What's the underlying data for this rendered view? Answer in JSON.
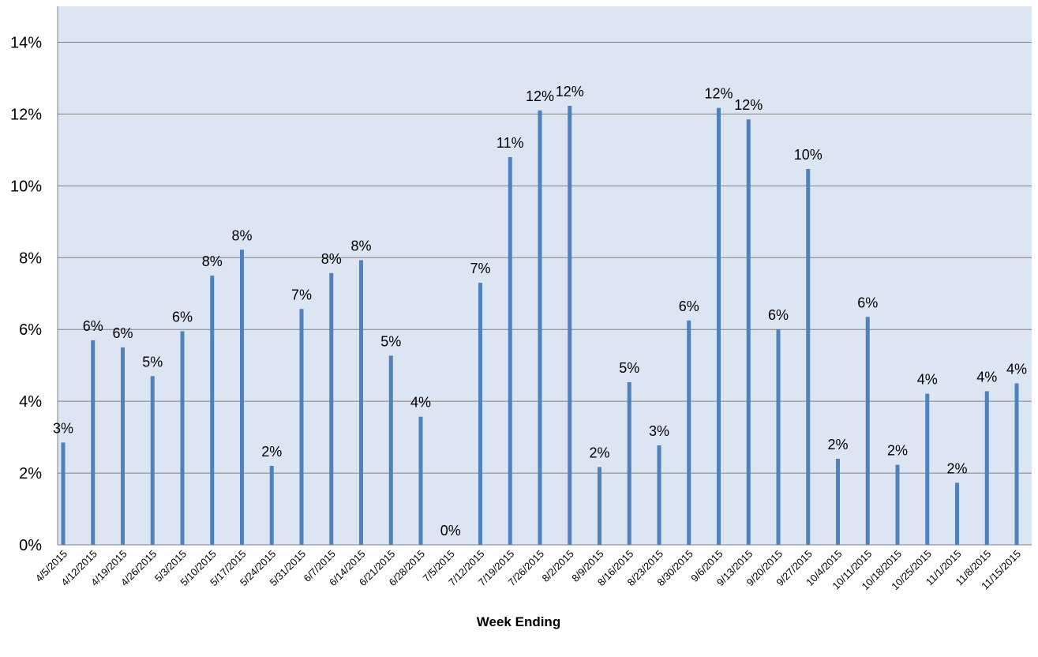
{
  "chart_data": {
    "type": "bar",
    "title": "",
    "xlabel": "Week Ending",
    "ylabel": "",
    "ylim": [
      0,
      0.15
    ],
    "yticks": [
      "0%",
      "2%",
      "4%",
      "6%",
      "8%",
      "10%",
      "12%",
      "14%"
    ],
    "grid": true,
    "legend": "none",
    "colors": {
      "plot_background": "#dce6f2",
      "bar": "#4f81bd",
      "gridline": "#808080",
      "axis": "#808080",
      "text": "#000000"
    },
    "categories": [
      "4/5/2015",
      "4/12/2015",
      "4/19/2015",
      "4/26/2015",
      "5/3/2015",
      "5/10/2015",
      "5/17/2015",
      "5/24/2015",
      "5/31/2015",
      "6/7/2015",
      "6/14/2015",
      "6/21/2015",
      "6/28/2015",
      "7/5/2015",
      "7/12/2015",
      "7/19/2015",
      "7/26/2015",
      "8/2/2015",
      "8/9/2015",
      "8/16/2015",
      "8/23/2015",
      "8/30/2015",
      "9/6/2015",
      "9/13/2015",
      "9/20/2015",
      "9/27/2015",
      "10/4/2015",
      "10/11/2015",
      "10/18/2015",
      "10/25/2015",
      "11/1/2015",
      "11/8/2015",
      "11/15/2015"
    ],
    "values": [
      0.0285,
      0.057,
      0.055,
      0.047,
      0.0595,
      0.075,
      0.0822,
      0.022,
      0.0657,
      0.0757,
      0.0793,
      0.0527,
      0.0357,
      0.0,
      0.073,
      0.108,
      0.121,
      0.1223,
      0.0217,
      0.0453,
      0.0277,
      0.0625,
      0.1217,
      0.1185,
      0.06,
      0.1047,
      0.024,
      0.0635,
      0.0223,
      0.0421,
      0.0173,
      0.0428,
      0.045
    ],
    "data_labels": [
      "3%",
      "6%",
      "6%",
      "5%",
      "6%",
      "8%",
      "8%",
      "2%",
      "7%",
      "8%",
      "8%",
      "5%",
      "4%",
      "0%",
      "7%",
      "11%",
      "12%",
      "12%",
      "2%",
      "5%",
      "3%",
      "6%",
      "12%",
      "12%",
      "6%",
      "10%",
      "2%",
      "6%",
      "2%",
      "4%",
      "2%",
      "4%",
      "4%"
    ]
  }
}
